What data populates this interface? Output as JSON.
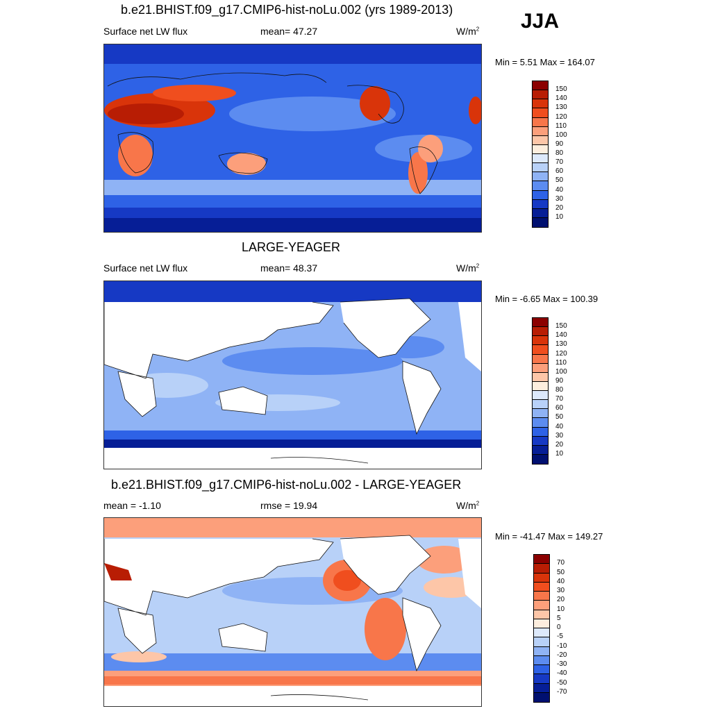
{
  "season": "JJA",
  "panels": [
    {
      "title": "b.e21.BHIST.f09_g17.CMIP6-hist-noLu.002 (yrs 1989-2013)",
      "variable": "Surface net LW flux",
      "stat_label": "mean=  47.27",
      "units": "W/m",
      "units_sup": "2",
      "minmax": "Min =   5.51 Max = 164.07",
      "colorbar": {
        "levels": [
          "150",
          "140",
          "130",
          "120",
          "110",
          "100",
          "90",
          "80",
          "70",
          "60",
          "50",
          "40",
          "30",
          "20",
          "10"
        ],
        "colors": [
          "#8b0000",
          "#b81d04",
          "#d9340a",
          "#f04e1e",
          "#f8764a",
          "#fc9f7b",
          "#fdc6a8",
          "#fdeede",
          "#dde9fb",
          "#b8d1f8",
          "#8fb3f5",
          "#5c8cf0",
          "#2e62e6",
          "#1639c4",
          "#061e96",
          "#001070"
        ]
      }
    },
    {
      "title": "LARGE-YEAGER",
      "variable": "Surface net LW flux",
      "stat_label": "mean=  48.37",
      "units": "W/m",
      "units_sup": "2",
      "minmax": "Min =  -6.65 Max = 100.39",
      "colorbar": {
        "levels": [
          "150",
          "140",
          "130",
          "120",
          "110",
          "100",
          "90",
          "80",
          "70",
          "60",
          "50",
          "40",
          "30",
          "20",
          "10"
        ],
        "colors": [
          "#8b0000",
          "#b81d04",
          "#d9340a",
          "#f04e1e",
          "#f8764a",
          "#fc9f7b",
          "#fdc6a8",
          "#fdeede",
          "#dde9fb",
          "#b8d1f8",
          "#8fb3f5",
          "#5c8cf0",
          "#2e62e6",
          "#1639c4",
          "#061e96",
          "#001070"
        ]
      }
    },
    {
      "title": "b.e21.BHIST.f09_g17.CMIP6-hist-noLu.002 - LARGE-YEAGER",
      "variable": "mean =  -1.10",
      "stat_label": "rmse =  19.94",
      "units": "W/m",
      "units_sup": "2",
      "minmax": "Min = -41.47 Max = 149.27",
      "colorbar": {
        "levels": [
          "70",
          "50",
          "40",
          "30",
          "20",
          "10",
          "5",
          "0",
          "-5",
          "-10",
          "-20",
          "-30",
          "-40",
          "-50",
          "-70"
        ],
        "colors": [
          "#8b0000",
          "#b81d04",
          "#d9340a",
          "#f04e1e",
          "#f8764a",
          "#fc9f7b",
          "#fdc6a8",
          "#fdeede",
          "#dde9fb",
          "#b8d1f8",
          "#8fb3f5",
          "#5c8cf0",
          "#2e62e6",
          "#1639c4",
          "#061e96",
          "#001070"
        ]
      }
    }
  ]
}
